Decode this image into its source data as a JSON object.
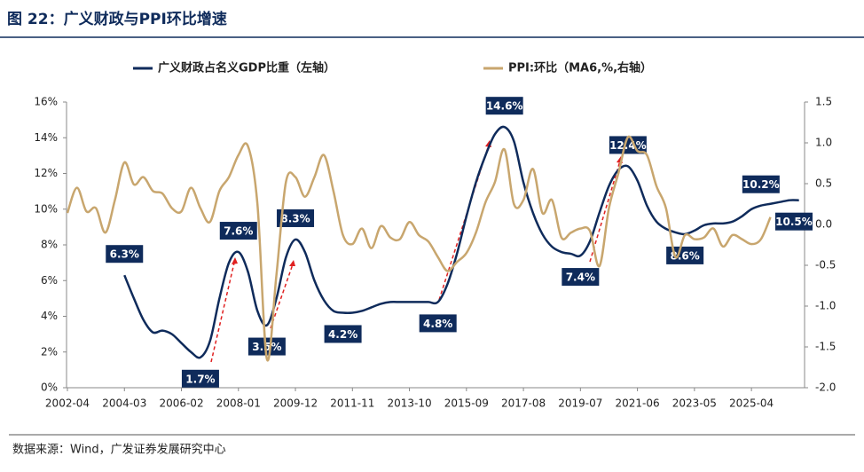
{
  "chart_data": {
    "type": "line",
    "title": "图 22：广义财政与PPI环比增速",
    "source": "数据来源：Wind，广发证券发展研究中心",
    "categories": [
      "2002-04",
      null,
      null,
      null,
      null,
      null,
      "2004-03",
      null,
      null,
      null,
      null,
      null,
      "2006-02",
      null,
      null,
      null,
      null,
      null,
      "2008-01",
      null,
      null,
      null,
      null,
      null,
      "2009-12",
      null,
      null,
      null,
      null,
      null,
      "2011-11",
      null,
      null,
      null,
      null,
      null,
      "2013-10",
      null,
      null,
      null,
      null,
      null,
      "2015-09",
      null,
      null,
      null,
      null,
      null,
      "2017-08",
      null,
      null,
      null,
      null,
      null,
      "2019-07",
      null,
      null,
      null,
      null,
      null,
      "2021-06",
      null,
      null,
      null,
      null,
      null,
      "2023-05",
      null,
      null,
      null,
      null,
      null,
      "2025-04",
      null,
      null,
      null,
      null,
      null
    ],
    "series": [
      {
        "name": "广义财政占名义GDP比重（左轴）",
        "color": "#0f2b5b",
        "values": [
          null,
          null,
          null,
          null,
          null,
          null,
          6.3,
          5.0,
          3.8,
          3.1,
          3.2,
          3.0,
          2.5,
          2.0,
          1.7,
          2.6,
          5.0,
          7.0,
          7.6,
          6.5,
          4.3,
          3.5,
          5.0,
          7.3,
          8.3,
          7.6,
          6.0,
          4.9,
          4.3,
          4.2,
          4.2,
          4.3,
          4.5,
          4.7,
          4.8,
          4.8,
          4.8,
          4.8,
          4.8,
          4.8,
          5.8,
          7.5,
          9.6,
          11.5,
          13.0,
          14.2,
          14.6,
          13.8,
          11.5,
          9.8,
          8.6,
          7.9,
          7.6,
          7.5,
          7.4,
          8.2,
          9.8,
          11.3,
          12.2,
          12.4,
          11.6,
          10.2,
          9.3,
          8.9,
          8.7,
          8.6,
          8.8,
          9.1,
          9.2,
          9.2,
          9.3,
          9.6,
          10.0,
          10.2,
          10.3,
          10.4,
          10.5,
          10.5
        ],
        "value_labels": [
          null,
          null,
          null,
          null,
          null,
          null,
          "6.3%",
          null,
          null,
          null,
          null,
          null,
          null,
          null,
          "1.7%",
          null,
          null,
          null,
          "7.6%",
          null,
          null,
          "3.5%",
          null,
          null,
          "8.3%",
          null,
          null,
          null,
          null,
          "4.2%",
          null,
          null,
          null,
          null,
          null,
          null,
          null,
          null,
          null,
          "4.8%",
          null,
          null,
          null,
          null,
          null,
          null,
          "14.6%",
          null,
          null,
          null,
          null,
          null,
          null,
          null,
          "7.4%",
          null,
          null,
          null,
          null,
          "12.4%",
          null,
          null,
          null,
          null,
          null,
          "8.6%",
          null,
          null,
          null,
          null,
          null,
          null,
          null,
          "10.2%",
          null,
          null,
          null,
          "10.5%"
        ]
      },
      {
        "name": "PPI:环比（MA6,%,右轴）",
        "color": "#c8a66e",
        "axis": "y2",
        "values": [
          0.14,
          0.45,
          0.16,
          0.2,
          -0.1,
          0.3,
          0.76,
          0.49,
          0.58,
          0.41,
          0.38,
          0.2,
          0.16,
          0.45,
          0.2,
          0.03,
          0.41,
          0.58,
          0.85,
          0.96,
          0.25,
          -1.65,
          -0.62,
          0.52,
          0.58,
          0.34,
          0.58,
          0.85,
          0.41,
          -0.13,
          -0.24,
          -0.05,
          -0.29,
          -0.02,
          -0.16,
          -0.18,
          0.03,
          -0.13,
          -0.21,
          -0.4,
          -0.57,
          -0.46,
          -0.35,
          -0.1,
          0.27,
          0.52,
          0.92,
          0.25,
          0.3,
          0.68,
          0.14,
          0.3,
          -0.16,
          -0.1,
          -0.05,
          -0.08,
          -0.51,
          0.2,
          0.63,
          1.07,
          0.9,
          0.85,
          0.47,
          0.2,
          -0.4,
          -0.13,
          -0.18,
          -0.16,
          -0.05,
          -0.27,
          -0.13,
          -0.18,
          -0.24,
          -0.18,
          0.09,
          null,
          null,
          null
        ]
      }
    ],
    "ylim": [
      0,
      16
    ],
    "yticks": [
      {
        "value": 0,
        "label": "0%"
      },
      {
        "value": 2,
        "label": "2%"
      },
      {
        "value": 4,
        "label": "4%"
      },
      {
        "value": 6,
        "label": "6%"
      },
      {
        "value": 8,
        "label": "8%"
      },
      {
        "value": 10,
        "label": "10%"
      },
      {
        "value": 12,
        "label": "12%"
      },
      {
        "value": 14,
        "label": "14%"
      },
      {
        "value": 16,
        "label": "16%"
      }
    ],
    "y2lim": [
      -2,
      1.5
    ],
    "y2ticks": [
      {
        "value": -2,
        "label": "-2.0"
      },
      -1.5,
      {
        "value": -1,
        "label": "-1.0"
      },
      -0.5,
      {
        "value": 0,
        "label": "0.0"
      },
      0.5,
      {
        "value": 1,
        "label": "1.0"
      },
      1.5
    ]
  }
}
